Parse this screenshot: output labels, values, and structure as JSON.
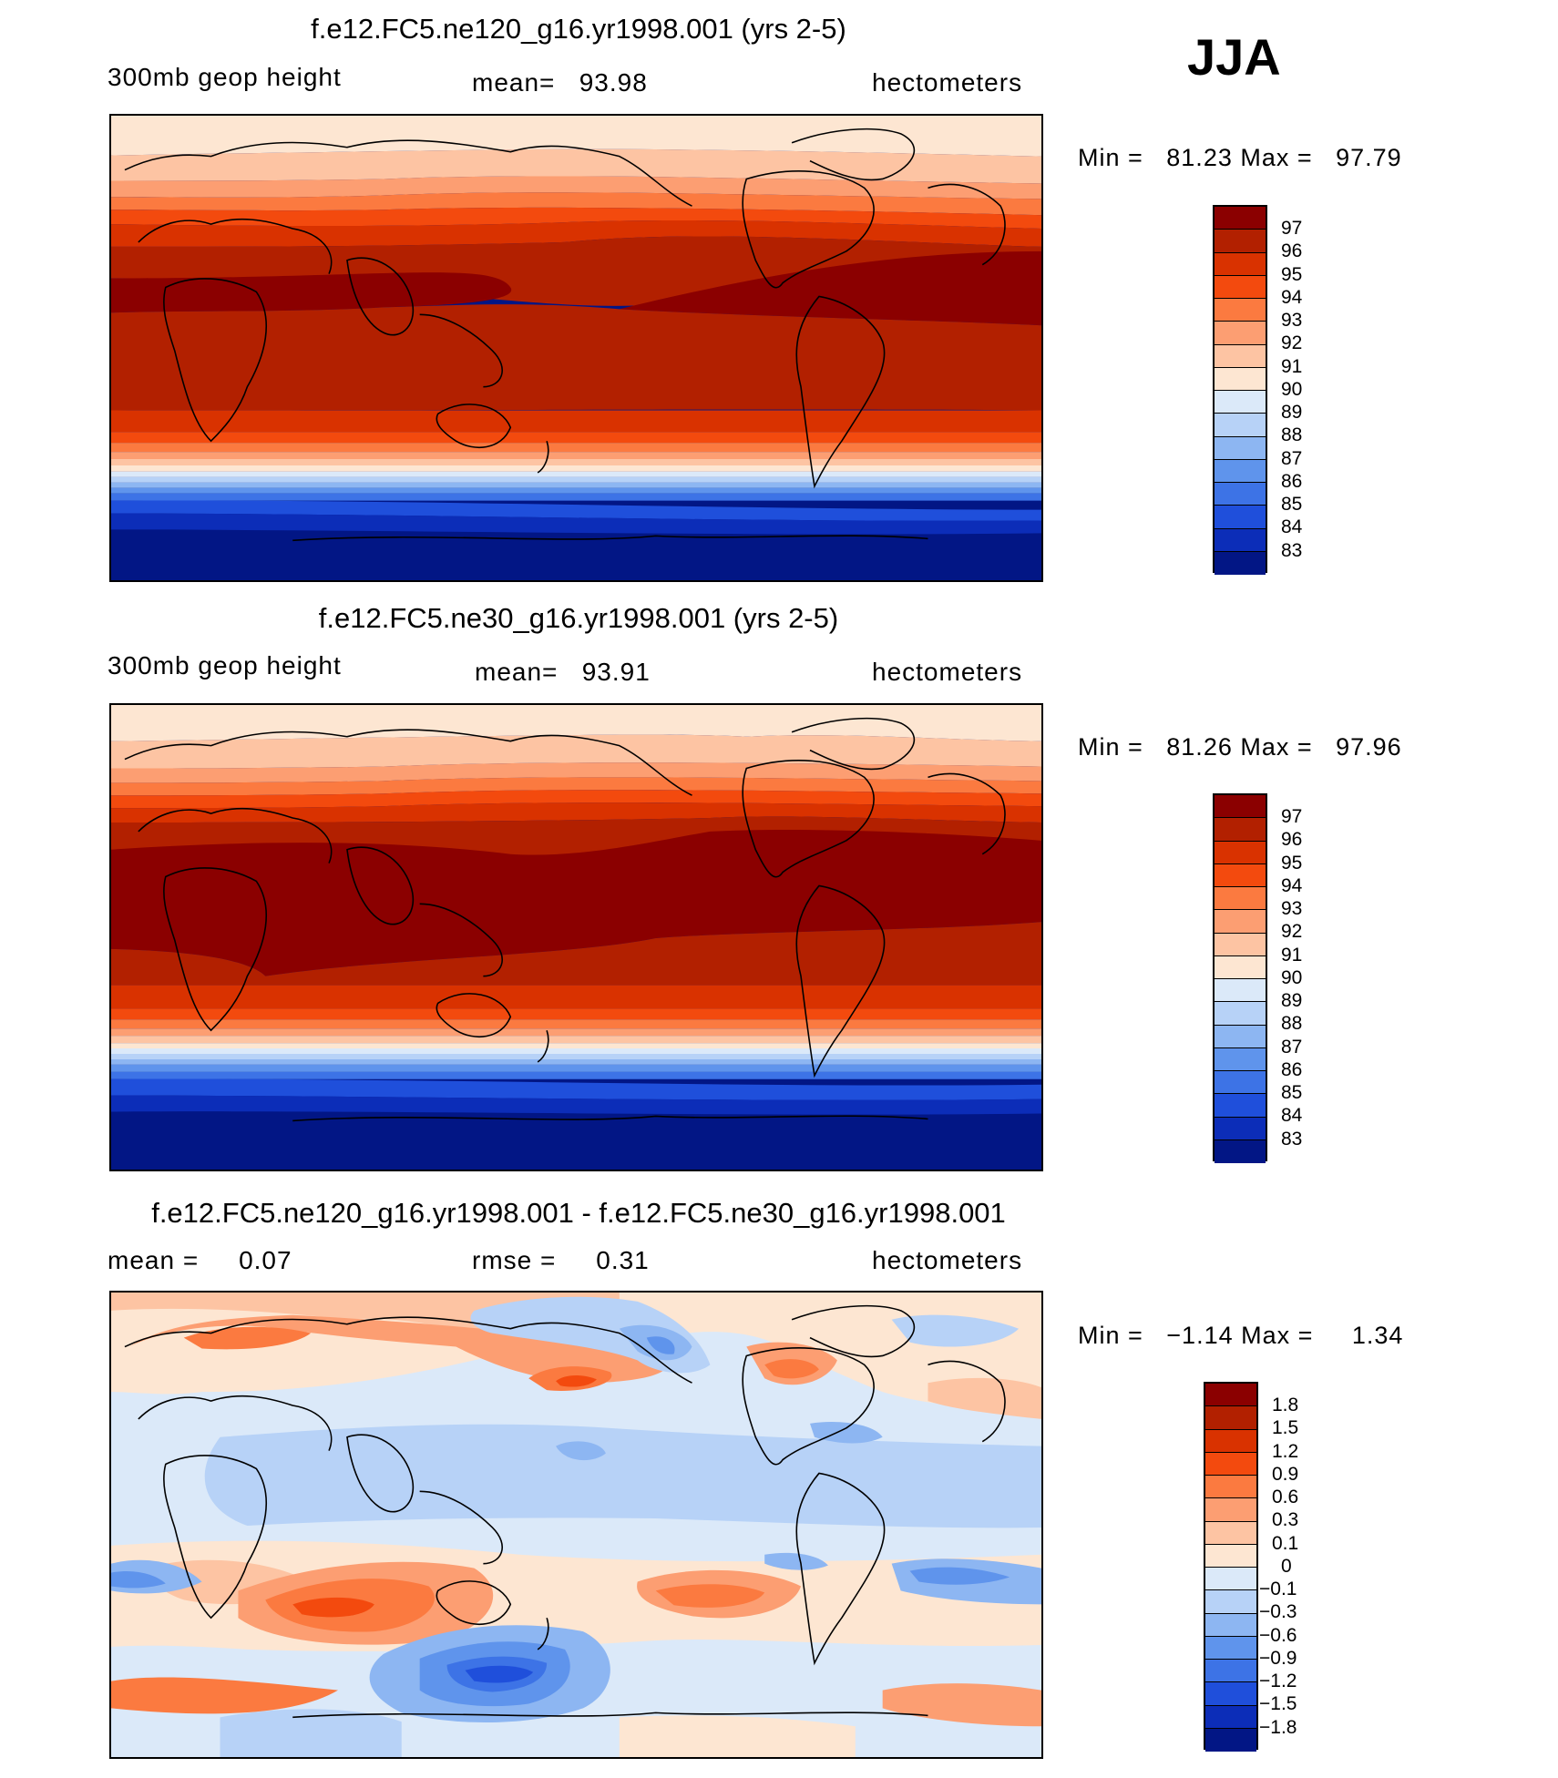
{
  "season": "JJA",
  "panels": [
    {
      "id": "top",
      "title": "f.e12.FC5.ne120_g16.yr1998.001 (yrs 2-5)",
      "left_label": "300mb geop height",
      "center_label": "mean=   93.98",
      "right_label": "hectometers",
      "minmax": "Min =   81.23 Max =   97.79",
      "colorbar": {
        "labels": [
          "97",
          "96",
          "95",
          "94",
          "93",
          "92",
          "91",
          "90",
          "89",
          "88",
          "87",
          "86",
          "85",
          "84",
          "83"
        ],
        "colors": [
          "#8b0000",
          "#b22000",
          "#d93200",
          "#f34a0e",
          "#fb7a40",
          "#fc9e72",
          "#fdc4a3",
          "#fde6d2",
          "#dbe9f9",
          "#b7d2f7",
          "#8db6f2",
          "#5f94ec",
          "#3d73e6",
          "#1f4fdb",
          "#0c2db8",
          "#021685"
        ]
      }
    },
    {
      "id": "middle",
      "title": "f.e12.FC5.ne30_g16.yr1998.001 (yrs 2-5)",
      "left_label": "300mb geop height",
      "center_label": "mean=   93.91",
      "right_label": "hectometers",
      "minmax": "Min =   81.26 Max =   97.96",
      "colorbar": {
        "labels": [
          "97",
          "96",
          "95",
          "94",
          "93",
          "92",
          "91",
          "90",
          "89",
          "88",
          "87",
          "86",
          "85",
          "84",
          "83"
        ],
        "colors": [
          "#8b0000",
          "#b22000",
          "#d93200",
          "#f34a0e",
          "#fb7a40",
          "#fc9e72",
          "#fdc4a3",
          "#fde6d2",
          "#dbe9f9",
          "#b7d2f7",
          "#8db6f2",
          "#5f94ec",
          "#3d73e6",
          "#1f4fdb",
          "#0c2db8",
          "#021685"
        ]
      }
    },
    {
      "id": "bottom",
      "title": "f.e12.FC5.ne120_g16.yr1998.001 - f.e12.FC5.ne30_g16.yr1998.001",
      "left_label": "mean =     0.07",
      "center_label": "rmse =     0.31",
      "right_label": "hectometers",
      "minmax": "Min =   −1.14 Max =     1.34",
      "colorbar": {
        "labels": [
          "1.8",
          "1.5",
          "1.2",
          "0.9",
          "0.6",
          "0.3",
          "0.1",
          "0",
          "−0.1",
          "−0.3",
          "−0.6",
          "−0.9",
          "−1.2",
          "−1.5",
          "−1.8"
        ],
        "colors": [
          "#8b0000",
          "#b22000",
          "#d93200",
          "#f34a0e",
          "#fb7a40",
          "#fc9e72",
          "#fdc4a3",
          "#fde6d2",
          "#dbe9f9",
          "#b7d2f7",
          "#8db6f2",
          "#5f94ec",
          "#3d73e6",
          "#1f4fdb",
          "#0c2db8",
          "#021685"
        ]
      }
    }
  ]
}
